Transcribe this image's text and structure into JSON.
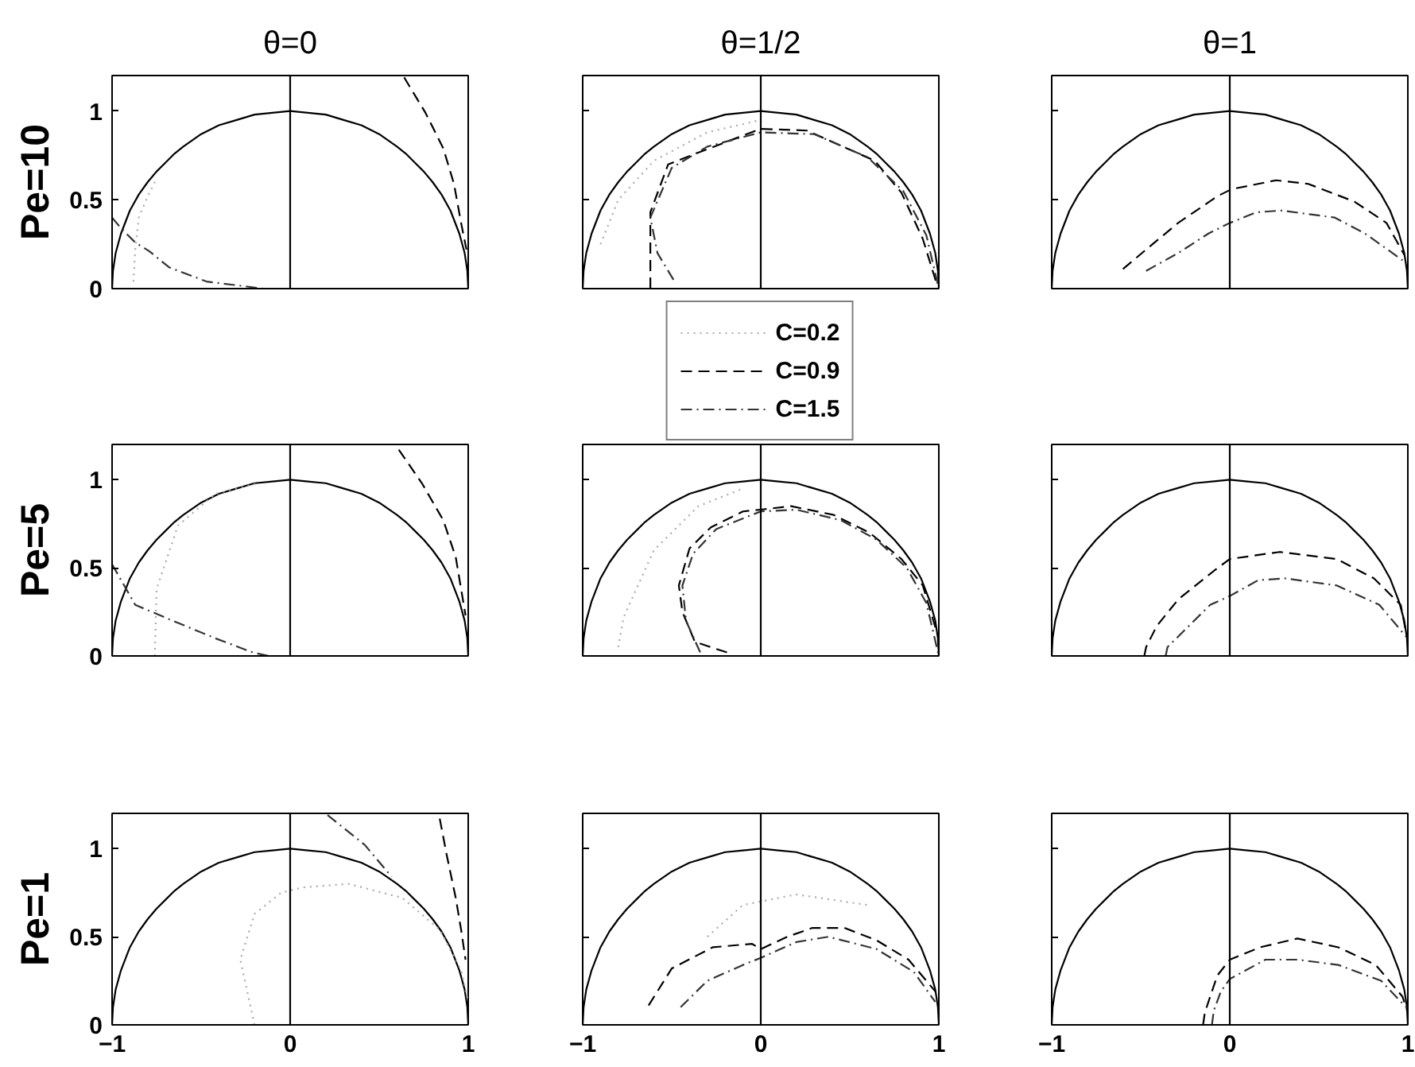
{
  "chart_data": [
    {
      "type": "line",
      "title": "θ=0",
      "ylabel": "Pe=10",
      "xlim": [
        -1,
        1
      ],
      "ylim": [
        0,
        1.2
      ],
      "xticks": [
        -1,
        0,
        1
      ],
      "yticks": [
        0,
        0.5,
        1
      ],
      "tick_labels": "y",
      "ref_lines": [
        {
          "axis": "x",
          "value": 0,
          "color": "#000000"
        }
      ],
      "series": [
        {
          "color": "#000000",
          "line_style": "solid",
          "x": [
            -1,
            -0.995,
            -0.98,
            -0.95,
            -0.9,
            -0.85,
            -0.8,
            -0.75,
            -0.7,
            -0.65,
            -0.6,
            -0.5,
            -0.4,
            -0.3,
            -0.2,
            -0.1,
            0,
            0.1,
            0.2,
            0.3,
            0.4,
            0.5,
            0.6,
            0.65,
            0.7,
            0.75,
            0.8,
            0.85,
            0.9,
            0.95,
            0.98,
            0.995,
            1
          ],
          "values": [
            0,
            0.1,
            0.2,
            0.31,
            0.44,
            0.53,
            0.6,
            0.66,
            0.71,
            0.76,
            0.8,
            0.87,
            0.92,
            0.95,
            0.98,
            0.99,
            1,
            0.99,
            0.98,
            0.95,
            0.92,
            0.87,
            0.8,
            0.76,
            0.71,
            0.66,
            0.6,
            0.53,
            0.44,
            0.31,
            0.2,
            0.1,
            0
          ]
        },
        {
          "color": "#aaaaaa",
          "line_style": "dotted",
          "x": [
            -0.88,
            -0.87,
            -0.85,
            -0.8,
            -0.75
          ],
          "values": [
            0.04,
            0.22,
            0.4,
            0.52,
            0.62
          ]
        },
        {
          "color": "#000000",
          "line_style": "dashed",
          "x": [
            0.64,
            0.76,
            0.86,
            0.92,
            0.96,
            0.99
          ],
          "values": [
            1.19,
            0.99,
            0.79,
            0.59,
            0.37,
            0.22
          ]
        },
        {
          "color": "#333333",
          "line_style": "dashdot",
          "x": [
            -1,
            -0.95,
            -0.87,
            -0.79,
            -0.68,
            -0.47,
            -0.23,
            -0.15
          ],
          "values": [
            0.4,
            0.34,
            0.26,
            0.21,
            0.12,
            0.04,
            0.01,
            0
          ]
        }
      ]
    },
    {
      "type": "line",
      "title": "θ=1/2",
      "xlim": [
        -1,
        1
      ],
      "ylim": [
        0,
        1.2
      ],
      "xticks": [
        -1,
        0,
        1
      ],
      "yticks": [
        0,
        0.5,
        1
      ],
      "tick_labels": false,
      "legend": "bottom",
      "ref_lines": [
        {
          "axis": "x",
          "value": 0,
          "color": "#000000"
        }
      ],
      "series": [
        {
          "color": "#000000",
          "line_style": "solid",
          "x": [
            -1,
            -0.995,
            -0.98,
            -0.95,
            -0.9,
            -0.85,
            -0.8,
            -0.75,
            -0.7,
            -0.65,
            -0.6,
            -0.5,
            -0.4,
            -0.3,
            -0.2,
            -0.1,
            0,
            0.1,
            0.2,
            0.3,
            0.4,
            0.5,
            0.6,
            0.65,
            0.7,
            0.75,
            0.8,
            0.85,
            0.9,
            0.95,
            0.98,
            0.995,
            1
          ],
          "values": [
            0,
            0.1,
            0.2,
            0.31,
            0.44,
            0.53,
            0.6,
            0.66,
            0.71,
            0.76,
            0.8,
            0.87,
            0.92,
            0.95,
            0.98,
            0.99,
            1,
            0.99,
            0.98,
            0.95,
            0.92,
            0.87,
            0.8,
            0.76,
            0.71,
            0.66,
            0.6,
            0.53,
            0.44,
            0.31,
            0.2,
            0.1,
            0
          ]
        },
        {
          "name": "C=0.2",
          "color": "#aaaaaa",
          "line_style": "dotted",
          "x": [
            -0.9,
            -0.8,
            -0.6,
            -0.3,
            0
          ],
          "values": [
            0.25,
            0.5,
            0.72,
            0.88,
            0.95
          ]
        },
        {
          "name": "C=0.9",
          "color": "#000000",
          "line_style": "dashed",
          "x": [
            -0.62,
            -0.62,
            -0.62,
            -0.52,
            -0.34,
            0,
            0.26,
            0.64,
            0.79,
            0.91,
            0.99
          ],
          "values": [
            0,
            0.2,
            0.43,
            0.7,
            0.77,
            0.9,
            0.89,
            0.72,
            0.54,
            0.28,
            0.02
          ]
        },
        {
          "name": "C=1.5",
          "color": "#333333",
          "line_style": "dashdot",
          "x": [
            -0.49,
            -0.58,
            -0.62,
            -0.5,
            -0.3,
            0,
            0.3,
            0.6,
            0.8,
            0.93,
            1
          ],
          "values": [
            0.05,
            0.2,
            0.4,
            0.68,
            0.8,
            0.88,
            0.87,
            0.74,
            0.55,
            0.3,
            0
          ]
        }
      ]
    },
    {
      "type": "line",
      "title": "θ=1",
      "xlim": [
        -1,
        1
      ],
      "ylim": [
        0,
        1.2
      ],
      "xticks": [
        -1,
        0,
        1
      ],
      "yticks": [
        0,
        0.5,
        1
      ],
      "tick_labels": false,
      "ref_lines": [
        {
          "axis": "x",
          "value": 0,
          "color": "#000000"
        }
      ],
      "series": [
        {
          "color": "#000000",
          "line_style": "solid",
          "x": [
            -1,
            -0.995,
            -0.98,
            -0.95,
            -0.9,
            -0.85,
            -0.8,
            -0.75,
            -0.7,
            -0.65,
            -0.6,
            -0.5,
            -0.4,
            -0.3,
            -0.2,
            -0.1,
            0,
            0.1,
            0.2,
            0.3,
            0.4,
            0.5,
            0.6,
            0.65,
            0.7,
            0.75,
            0.8,
            0.85,
            0.9,
            0.95,
            0.98,
            0.995,
            1
          ],
          "values": [
            0,
            0.1,
            0.2,
            0.31,
            0.44,
            0.53,
            0.6,
            0.66,
            0.71,
            0.76,
            0.8,
            0.87,
            0.92,
            0.95,
            0.98,
            0.99,
            1,
            0.99,
            0.98,
            0.95,
            0.92,
            0.87,
            0.8,
            0.76,
            0.71,
            0.66,
            0.6,
            0.53,
            0.44,
            0.31,
            0.2,
            0.1,
            0
          ]
        },
        {
          "color": "#000000",
          "line_style": "dashed",
          "x": [
            -0.6,
            -0.47,
            -0.29,
            -0.07,
            0.01,
            0.26,
            0.44,
            0.7,
            0.88,
            0.98
          ],
          "values": [
            0.11,
            0.22,
            0.37,
            0.52,
            0.56,
            0.61,
            0.59,
            0.49,
            0.37,
            0.19
          ]
        },
        {
          "color": "#333333",
          "line_style": "dashdot",
          "x": [
            -0.47,
            -0.29,
            -0.12,
            0,
            0.15,
            0.29,
            0.59,
            0.76,
            0.97
          ],
          "values": [
            0.1,
            0.2,
            0.31,
            0.37,
            0.43,
            0.44,
            0.4,
            0.31,
            0.16
          ]
        }
      ]
    },
    {
      "type": "line",
      "ylabel": "Pe=5",
      "xlim": [
        -1,
        1
      ],
      "ylim": [
        0,
        1.2
      ],
      "xticks": [
        -1,
        0,
        1
      ],
      "yticks": [
        0,
        0.5,
        1
      ],
      "tick_labels": "y",
      "ref_lines": [
        {
          "axis": "x",
          "value": 0,
          "color": "#000000"
        }
      ],
      "series": [
        {
          "color": "#000000",
          "line_style": "solid",
          "x": [
            -1,
            -0.995,
            -0.98,
            -0.95,
            -0.9,
            -0.85,
            -0.8,
            -0.75,
            -0.7,
            -0.65,
            -0.6,
            -0.5,
            -0.4,
            -0.3,
            -0.2,
            -0.1,
            0,
            0.1,
            0.2,
            0.3,
            0.4,
            0.5,
            0.6,
            0.65,
            0.7,
            0.75,
            0.8,
            0.85,
            0.9,
            0.95,
            0.98,
            0.995,
            1
          ],
          "values": [
            0,
            0.1,
            0.2,
            0.31,
            0.44,
            0.53,
            0.6,
            0.66,
            0.71,
            0.76,
            0.8,
            0.87,
            0.92,
            0.95,
            0.98,
            0.99,
            1,
            0.99,
            0.98,
            0.95,
            0.92,
            0.87,
            0.8,
            0.76,
            0.71,
            0.66,
            0.6,
            0.53,
            0.44,
            0.31,
            0.2,
            0.1,
            0
          ]
        },
        {
          "color": "#aaaaaa",
          "line_style": "dotted",
          "x": [
            -0.76,
            -0.75,
            -0.63,
            -0.42,
            -0.18
          ],
          "values": [
            0,
            0.38,
            0.74,
            0.92,
            0.98
          ]
        },
        {
          "color": "#000000",
          "line_style": "dashed",
          "x": [
            0.61,
            0.74,
            0.86,
            0.93,
            0.96,
            0.985
          ],
          "values": [
            1.17,
            0.98,
            0.77,
            0.56,
            0.38,
            0.23
          ]
        },
        {
          "color": "#333333",
          "line_style": "dashdot",
          "x": [
            -1,
            -0.87,
            -0.66,
            -0.42,
            -0.21,
            -0.12
          ],
          "values": [
            0.52,
            0.29,
            0.2,
            0.1,
            0.02,
            0
          ]
        }
      ]
    },
    {
      "type": "line",
      "xlim": [
        -1,
        1
      ],
      "ylim": [
        0,
        1.2
      ],
      "xticks": [
        -1,
        0,
        1
      ],
      "yticks": [
        0,
        0.5,
        1
      ],
      "tick_labels": false,
      "ref_lines": [
        {
          "axis": "x",
          "value": 0,
          "color": "#000000"
        }
      ],
      "series": [
        {
          "color": "#000000",
          "line_style": "solid",
          "x": [
            -1,
            -0.995,
            -0.98,
            -0.95,
            -0.9,
            -0.85,
            -0.8,
            -0.75,
            -0.7,
            -0.65,
            -0.6,
            -0.5,
            -0.4,
            -0.3,
            -0.2,
            -0.1,
            0,
            0.1,
            0.2,
            0.3,
            0.4,
            0.5,
            0.6,
            0.65,
            0.7,
            0.75,
            0.8,
            0.85,
            0.9,
            0.95,
            0.98,
            0.995,
            1
          ],
          "values": [
            0,
            0.1,
            0.2,
            0.31,
            0.44,
            0.53,
            0.6,
            0.66,
            0.71,
            0.76,
            0.8,
            0.87,
            0.92,
            0.95,
            0.98,
            0.99,
            1,
            0.99,
            0.98,
            0.95,
            0.92,
            0.87,
            0.8,
            0.76,
            0.71,
            0.66,
            0.6,
            0.53,
            0.44,
            0.31,
            0.2,
            0.1,
            0
          ]
        },
        {
          "color": "#aaaaaa",
          "line_style": "dotted",
          "x": [
            -0.8,
            -0.77,
            -0.6,
            -0.35,
            -0.1
          ],
          "values": [
            0.05,
            0.22,
            0.6,
            0.85,
            0.95
          ]
        },
        {
          "color": "#000000",
          "line_style": "dashed",
          "x": [
            -0.19,
            -0.37,
            -0.44,
            -0.46,
            -0.4,
            -0.28,
            -0.1,
            0,
            0.17,
            0.41,
            0.61,
            0.79,
            0.91,
            0.99
          ],
          "values": [
            0.02,
            0.08,
            0.25,
            0.4,
            0.61,
            0.73,
            0.82,
            0.83,
            0.85,
            0.8,
            0.7,
            0.55,
            0.4,
            0.13
          ]
        },
        {
          "color": "#333333",
          "line_style": "dashdot",
          "x": [
            -0.34,
            -0.42,
            -0.44,
            -0.38,
            -0.25,
            0,
            0.2,
            0.45,
            0.65,
            0.82,
            0.93,
            1
          ],
          "values": [
            0.02,
            0.2,
            0.4,
            0.58,
            0.72,
            0.82,
            0.83,
            0.77,
            0.66,
            0.5,
            0.3,
            0
          ]
        }
      ]
    },
    {
      "type": "line",
      "xlim": [
        -1,
        1
      ],
      "ylim": [
        0,
        1.2
      ],
      "xticks": [
        -1,
        0,
        1
      ],
      "yticks": [
        0,
        0.5,
        1
      ],
      "tick_labels": false,
      "ref_lines": [
        {
          "axis": "x",
          "value": 0,
          "color": "#000000"
        }
      ],
      "series": [
        {
          "color": "#000000",
          "line_style": "solid",
          "x": [
            -1,
            -0.995,
            -0.98,
            -0.95,
            -0.9,
            -0.85,
            -0.8,
            -0.75,
            -0.7,
            -0.65,
            -0.6,
            -0.5,
            -0.4,
            -0.3,
            -0.2,
            -0.1,
            0,
            0.1,
            0.2,
            0.3,
            0.4,
            0.5,
            0.6,
            0.65,
            0.7,
            0.75,
            0.8,
            0.85,
            0.9,
            0.95,
            0.98,
            0.995,
            1
          ],
          "values": [
            0,
            0.1,
            0.2,
            0.31,
            0.44,
            0.53,
            0.6,
            0.66,
            0.71,
            0.76,
            0.8,
            0.87,
            0.92,
            0.95,
            0.98,
            0.99,
            1,
            0.99,
            0.98,
            0.95,
            0.92,
            0.87,
            0.8,
            0.76,
            0.71,
            0.66,
            0.6,
            0.53,
            0.44,
            0.31,
            0.2,
            0.1,
            0
          ]
        },
        {
          "color": "#000000",
          "line_style": "dashed",
          "x": [
            -0.48,
            -0.47,
            -0.41,
            -0.29,
            -0.08,
            0,
            0.28,
            0.6,
            0.81,
            0.96,
            1
          ],
          "values": [
            0,
            0.05,
            0.17,
            0.32,
            0.49,
            0.55,
            0.59,
            0.55,
            0.44,
            0.29,
            0.08
          ]
        },
        {
          "color": "#333333",
          "line_style": "dashdot",
          "x": [
            -0.36,
            -0.35,
            -0.26,
            -0.11,
            0,
            0.16,
            0.31,
            0.6,
            0.84,
            0.99
          ],
          "values": [
            0,
            0.05,
            0.14,
            0.29,
            0.34,
            0.43,
            0.44,
            0.4,
            0.29,
            0.11
          ]
        }
      ]
    },
    {
      "type": "line",
      "ylabel": "Pe=1",
      "xlim": [
        -1,
        1
      ],
      "ylim": [
        0,
        1.2
      ],
      "xticks": [
        -1,
        0,
        1
      ],
      "yticks": [
        0,
        0.5,
        1
      ],
      "ref_lines": [
        {
          "axis": "x",
          "value": 0,
          "color": "#000000"
        }
      ],
      "series": [
        {
          "color": "#000000",
          "line_style": "solid",
          "x": [
            -1,
            -0.995,
            -0.98,
            -0.95,
            -0.9,
            -0.85,
            -0.8,
            -0.75,
            -0.7,
            -0.65,
            -0.6,
            -0.5,
            -0.4,
            -0.3,
            -0.2,
            -0.1,
            0,
            0.1,
            0.2,
            0.3,
            0.4,
            0.5,
            0.6,
            0.65,
            0.7,
            0.75,
            0.8,
            0.85,
            0.9,
            0.95,
            0.98,
            0.995,
            1
          ],
          "values": [
            0,
            0.1,
            0.2,
            0.31,
            0.44,
            0.53,
            0.6,
            0.66,
            0.71,
            0.76,
            0.8,
            0.87,
            0.92,
            0.95,
            0.98,
            0.99,
            1,
            0.99,
            0.98,
            0.95,
            0.92,
            0.87,
            0.8,
            0.76,
            0.71,
            0.66,
            0.6,
            0.53,
            0.44,
            0.31,
            0.2,
            0.1,
            0
          ]
        },
        {
          "color": "#aaaaaa",
          "line_style": "dotted",
          "x": [
            -0.2,
            -0.28,
            -0.2,
            -0.05,
            0.07,
            0.33,
            0.63,
            0.84,
            0.96,
            1
          ],
          "values": [
            0,
            0.37,
            0.63,
            0.75,
            0.78,
            0.8,
            0.72,
            0.54,
            0.31,
            0.13
          ]
        },
        {
          "color": "#000000",
          "line_style": "dashed",
          "x": [
            0.84,
            0.88,
            0.93,
            0.96,
            0.985
          ],
          "values": [
            1.17,
            0.96,
            0.72,
            0.54,
            0.37
          ]
        },
        {
          "color": "#333333",
          "line_style": "dashdot",
          "x": [
            0.21,
            0.42,
            0.57
          ],
          "values": [
            1.19,
            1.02,
            0.84
          ]
        }
      ]
    },
    {
      "type": "line",
      "xlim": [
        -1,
        1
      ],
      "ylim": [
        0,
        1.2
      ],
      "xticks": [
        -1,
        0,
        1
      ],
      "yticks": [
        0,
        0.5,
        1
      ],
      "tick_labels": "x",
      "ref_lines": [
        {
          "axis": "x",
          "value": 0,
          "color": "#000000"
        }
      ],
      "series": [
        {
          "color": "#000000",
          "line_style": "solid",
          "x": [
            -1,
            -0.995,
            -0.98,
            -0.95,
            -0.9,
            -0.85,
            -0.8,
            -0.75,
            -0.7,
            -0.65,
            -0.6,
            -0.5,
            -0.4,
            -0.3,
            -0.2,
            -0.1,
            0,
            0.1,
            0.2,
            0.3,
            0.4,
            0.5,
            0.6,
            0.65,
            0.7,
            0.75,
            0.8,
            0.85,
            0.9,
            0.95,
            0.98,
            0.995,
            1
          ],
          "values": [
            0,
            0.1,
            0.2,
            0.31,
            0.44,
            0.53,
            0.6,
            0.66,
            0.71,
            0.76,
            0.8,
            0.87,
            0.92,
            0.95,
            0.98,
            0.99,
            1,
            0.99,
            0.98,
            0.95,
            0.92,
            0.87,
            0.8,
            0.76,
            0.71,
            0.66,
            0.6,
            0.53,
            0.44,
            0.31,
            0.2,
            0.1,
            0
          ]
        },
        {
          "color": "#aaaaaa",
          "line_style": "dotted",
          "x": [
            -0.3,
            -0.1,
            0.2,
            0.6
          ],
          "values": [
            0.5,
            0.68,
            0.74,
            0.68
          ]
        },
        {
          "color": "#000000",
          "line_style": "dashed",
          "x": [
            -0.63,
            -0.5,
            -0.27,
            -0.05,
            0,
            0.15,
            0.29,
            0.47,
            0.65,
            0.83,
            0.98
          ],
          "values": [
            0.11,
            0.32,
            0.44,
            0.46,
            0.43,
            0.5,
            0.55,
            0.55,
            0.48,
            0.37,
            0.19
          ]
        },
        {
          "color": "#333333",
          "line_style": "dashdot",
          "x": [
            -0.45,
            -0.3,
            -0.1,
            0,
            0.2,
            0.38,
            0.65,
            0.86,
            0.98
          ],
          "values": [
            0.1,
            0.25,
            0.34,
            0.38,
            0.47,
            0.5,
            0.43,
            0.3,
            0.13
          ]
        }
      ]
    },
    {
      "type": "line",
      "xlim": [
        -1,
        1
      ],
      "ylim": [
        0,
        1.2
      ],
      "xticks": [
        -1,
        0,
        1
      ],
      "yticks": [
        0,
        0.5,
        1
      ],
      "tick_labels": "x",
      "ref_lines": [
        {
          "axis": "x",
          "value": 0,
          "color": "#000000"
        }
      ],
      "series": [
        {
          "color": "#000000",
          "line_style": "solid",
          "x": [
            -1,
            -0.995,
            -0.98,
            -0.95,
            -0.9,
            -0.85,
            -0.8,
            -0.75,
            -0.7,
            -0.65,
            -0.6,
            -0.5,
            -0.4,
            -0.3,
            -0.2,
            -0.1,
            0,
            0.1,
            0.2,
            0.3,
            0.4,
            0.5,
            0.6,
            0.65,
            0.7,
            0.75,
            0.8,
            0.85,
            0.9,
            0.95,
            0.98,
            0.995,
            1
          ],
          "values": [
            0,
            0.1,
            0.2,
            0.31,
            0.44,
            0.53,
            0.6,
            0.66,
            0.71,
            0.76,
            0.8,
            0.87,
            0.92,
            0.95,
            0.98,
            0.99,
            1,
            0.99,
            0.98,
            0.95,
            0.92,
            0.87,
            0.8,
            0.76,
            0.71,
            0.66,
            0.6,
            0.53,
            0.44,
            0.31,
            0.2,
            0.1,
            0
          ]
        },
        {
          "color": "#000000",
          "line_style": "dashed",
          "x": [
            -0.15,
            -0.14,
            -0.11,
            -0.07,
            0,
            0.17,
            0.38,
            0.61,
            0.82,
            0.97,
            1
          ],
          "values": [
            0,
            0.07,
            0.16,
            0.28,
            0.37,
            0.44,
            0.49,
            0.44,
            0.34,
            0.16,
            0.07
          ]
        },
        {
          "color": "#333333",
          "line_style": "dashdot",
          "x": [
            -0.1,
            -0.09,
            -0.05,
            0,
            0.2,
            0.38,
            0.61,
            0.85,
            0.99
          ],
          "values": [
            0,
            0.08,
            0.19,
            0.26,
            0.37,
            0.37,
            0.34,
            0.25,
            0.1
          ]
        }
      ]
    }
  ]
}
